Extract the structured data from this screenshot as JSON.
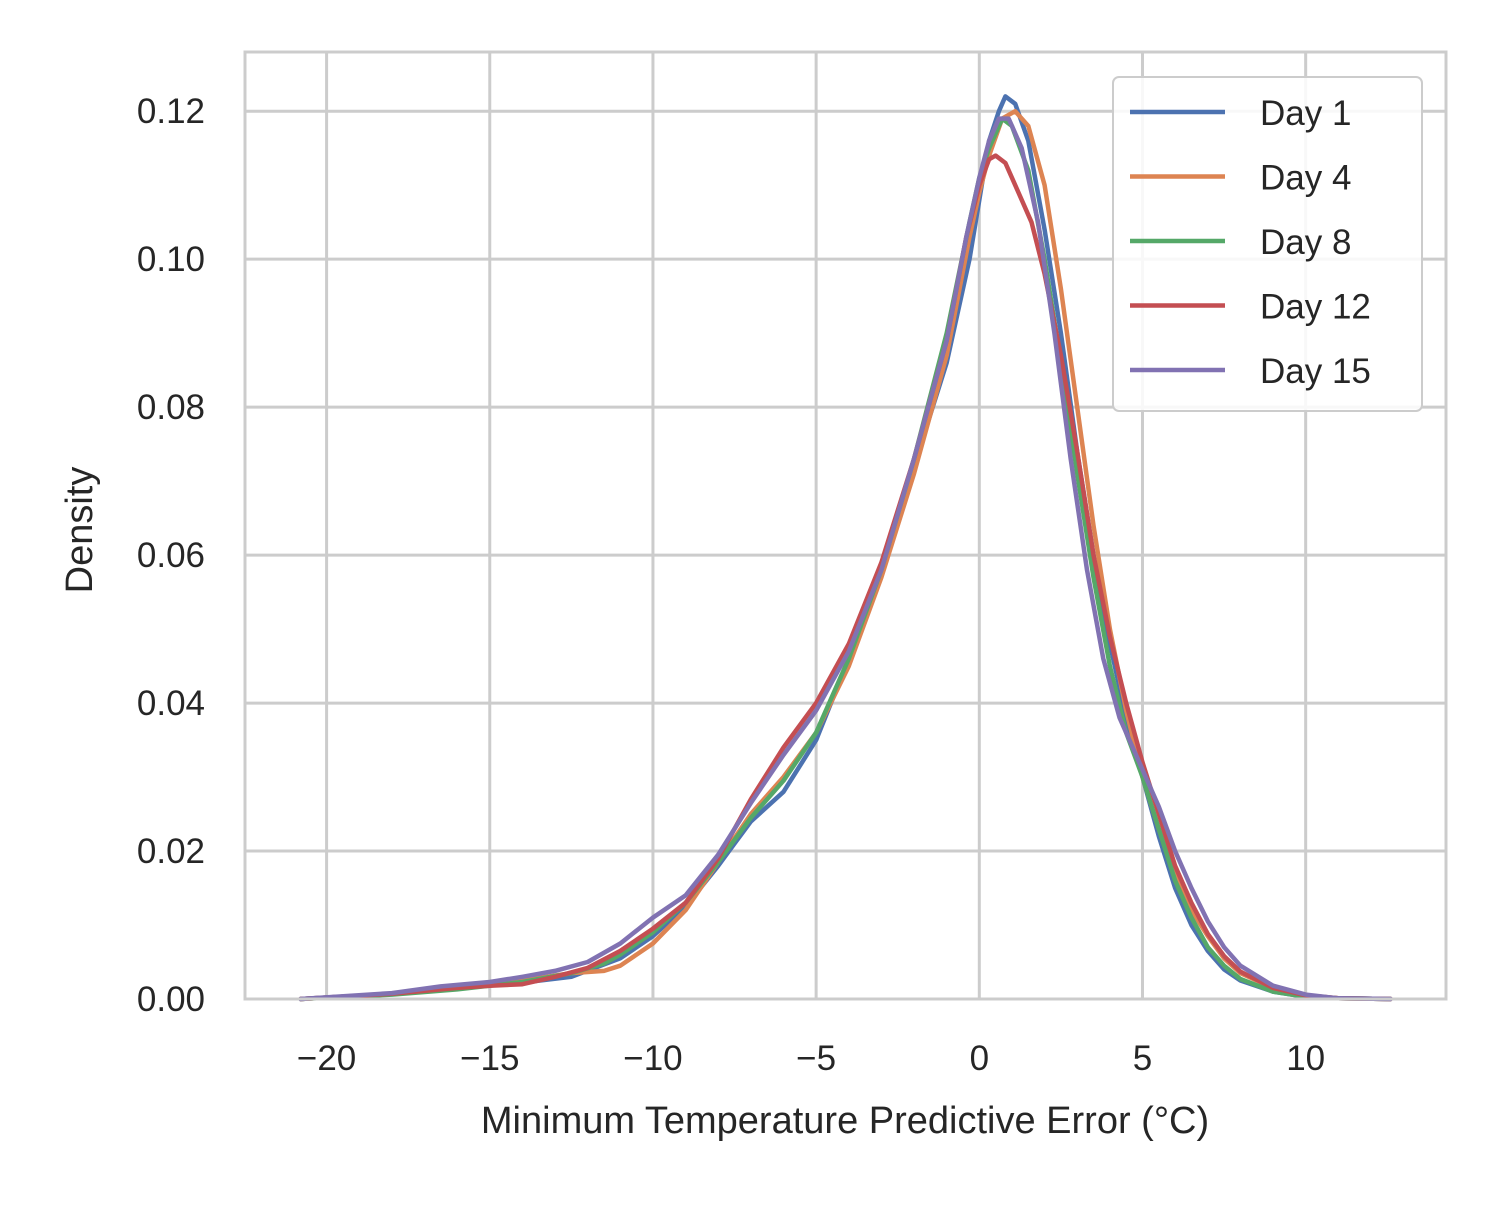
{
  "chart_data": {
    "type": "line",
    "xlabel": "Minimum Temperature Predictive Error (°C)",
    "ylabel": "Density",
    "xlim": [
      -22.5,
      14.3
    ],
    "ylim": [
      0,
      0.128
    ],
    "xticks": [
      -20,
      -15,
      -10,
      -5,
      0,
      5,
      10
    ],
    "xtick_labels": [
      "−20",
      "−15",
      "−10",
      "−5",
      "0",
      "5",
      "10"
    ],
    "yticks": [
      0.0,
      0.02,
      0.04,
      0.06,
      0.08,
      0.1,
      0.12
    ],
    "ytick_labels": [
      "0.00",
      "0.02",
      "0.04",
      "0.06",
      "0.08",
      "0.10",
      "0.12"
    ],
    "grid": true,
    "legend_position": "top-right",
    "series": [
      {
        "name": "Day 1",
        "color": "#4c72b0",
        "points": [
          [
            -20.8,
            0
          ],
          [
            -18,
            0.0007
          ],
          [
            -16,
            0.0015
          ],
          [
            -14,
            0.0022
          ],
          [
            -12.5,
            0.003
          ],
          [
            -11,
            0.0055
          ],
          [
            -10,
            0.0085
          ],
          [
            -9,
            0.0125
          ],
          [
            -8,
            0.018
          ],
          [
            -7.5,
            0.021
          ],
          [
            -7,
            0.024
          ],
          [
            -6,
            0.028
          ],
          [
            -5,
            0.035
          ],
          [
            -4,
            0.046
          ],
          [
            -3,
            0.058
          ],
          [
            -2,
            0.072
          ],
          [
            -1,
            0.086
          ],
          [
            -0.3,
            0.1
          ],
          [
            0,
            0.108
          ],
          [
            0.3,
            0.116
          ],
          [
            0.6,
            0.12
          ],
          [
            0.8,
            0.122
          ],
          [
            1.1,
            0.121
          ],
          [
            1.5,
            0.116
          ],
          [
            2,
            0.104
          ],
          [
            2.5,
            0.09
          ],
          [
            3,
            0.074
          ],
          [
            3.5,
            0.06
          ],
          [
            4,
            0.048
          ],
          [
            4.5,
            0.038
          ],
          [
            5,
            0.03
          ],
          [
            5.5,
            0.022
          ],
          [
            6,
            0.015
          ],
          [
            6.5,
            0.01
          ],
          [
            7,
            0.0065
          ],
          [
            7.5,
            0.004
          ],
          [
            8,
            0.0025
          ],
          [
            9,
            0.001
          ],
          [
            10,
            0.0003
          ],
          [
            11,
            0.0001
          ],
          [
            12.6,
            0
          ]
        ]
      },
      {
        "name": "Day 4",
        "color": "#dd8452",
        "points": [
          [
            -20.8,
            0
          ],
          [
            -18,
            0.0007
          ],
          [
            -16,
            0.0015
          ],
          [
            -14,
            0.0025
          ],
          [
            -12.5,
            0.0035
          ],
          [
            -11.5,
            0.0038
          ],
          [
            -11,
            0.0045
          ],
          [
            -10,
            0.0075
          ],
          [
            -9,
            0.012
          ],
          [
            -8,
            0.0185
          ],
          [
            -7,
            0.025
          ],
          [
            -6,
            0.03
          ],
          [
            -5,
            0.036
          ],
          [
            -4,
            0.045
          ],
          [
            -3,
            0.057
          ],
          [
            -2,
            0.071
          ],
          [
            -1,
            0.087
          ],
          [
            -0.3,
            0.103
          ],
          [
            0,
            0.109
          ],
          [
            0.3,
            0.114
          ],
          [
            0.7,
            0.119
          ],
          [
            1.1,
            0.12
          ],
          [
            1.5,
            0.118
          ],
          [
            2,
            0.11
          ],
          [
            2.5,
            0.096
          ],
          [
            3,
            0.08
          ],
          [
            3.5,
            0.064
          ],
          [
            4,
            0.05
          ],
          [
            4.5,
            0.039
          ],
          [
            5,
            0.03
          ],
          [
            5.5,
            0.023
          ],
          [
            6,
            0.017
          ],
          [
            6.5,
            0.012
          ],
          [
            7,
            0.0085
          ],
          [
            7.5,
            0.0055
          ],
          [
            8,
            0.0035
          ],
          [
            9,
            0.0015
          ],
          [
            10,
            0.0005
          ],
          [
            11,
            0.0001
          ],
          [
            12.6,
            0
          ]
        ]
      },
      {
        "name": "Day 8",
        "color": "#55a868",
        "points": [
          [
            -20.8,
            0
          ],
          [
            -18,
            0.0006
          ],
          [
            -16,
            0.0013
          ],
          [
            -14,
            0.0023
          ],
          [
            -12.5,
            0.0035
          ],
          [
            -11.5,
            0.0048
          ],
          [
            -11,
            0.006
          ],
          [
            -10,
            0.009
          ],
          [
            -9,
            0.013
          ],
          [
            -8,
            0.0185
          ],
          [
            -7,
            0.0245
          ],
          [
            -6,
            0.0295
          ],
          [
            -5,
            0.036
          ],
          [
            -4,
            0.046
          ],
          [
            -3,
            0.058
          ],
          [
            -2,
            0.073
          ],
          [
            -1,
            0.09
          ],
          [
            -0.3,
            0.105
          ],
          [
            0,
            0.111
          ],
          [
            0.3,
            0.115
          ],
          [
            0.7,
            0.119
          ],
          [
            1,
            0.118
          ],
          [
            1.5,
            0.112
          ],
          [
            2,
            0.1
          ],
          [
            2.5,
            0.086
          ],
          [
            3,
            0.071
          ],
          [
            3.5,
            0.057
          ],
          [
            4,
            0.045
          ],
          [
            4.5,
            0.036
          ],
          [
            5,
            0.03
          ],
          [
            5.5,
            0.023
          ],
          [
            6,
            0.016
          ],
          [
            6.5,
            0.011
          ],
          [
            7,
            0.007
          ],
          [
            7.5,
            0.0045
          ],
          [
            8,
            0.0027
          ],
          [
            9,
            0.001
          ],
          [
            10,
            0.0003
          ],
          [
            11,
            0.0001
          ],
          [
            12.6,
            0
          ]
        ]
      },
      {
        "name": "Day 12",
        "color": "#c44e52",
        "points": [
          [
            -20.8,
            0
          ],
          [
            -18,
            0.0007
          ],
          [
            -16,
            0.0015
          ],
          [
            -15,
            0.0018
          ],
          [
            -14,
            0.002
          ],
          [
            -13,
            0.003
          ],
          [
            -12,
            0.0042
          ],
          [
            -11,
            0.0065
          ],
          [
            -10,
            0.0095
          ],
          [
            -9,
            0.013
          ],
          [
            -8,
            0.019
          ],
          [
            -7,
            0.027
          ],
          [
            -6,
            0.034
          ],
          [
            -5,
            0.04
          ],
          [
            -4,
            0.048
          ],
          [
            -3,
            0.059
          ],
          [
            -2,
            0.073
          ],
          [
            -1,
            0.089
          ],
          [
            -0.4,
            0.103
          ],
          [
            0,
            0.11
          ],
          [
            0.3,
            0.1135
          ],
          [
            0.5,
            0.114
          ],
          [
            0.8,
            0.113
          ],
          [
            1.2,
            0.109
          ],
          [
            1.6,
            0.105
          ],
          [
            2,
            0.098
          ],
          [
            2.5,
            0.087
          ],
          [
            3,
            0.074
          ],
          [
            3.5,
            0.06
          ],
          [
            4,
            0.049
          ],
          [
            4.5,
            0.04
          ],
          [
            5,
            0.032
          ],
          [
            5.5,
            0.025
          ],
          [
            6,
            0.018
          ],
          [
            6.5,
            0.013
          ],
          [
            7,
            0.0088
          ],
          [
            7.5,
            0.0058
          ],
          [
            8,
            0.0037
          ],
          [
            9,
            0.0015
          ],
          [
            10,
            0.0005
          ],
          [
            11,
            0.0001
          ],
          [
            12.6,
            0
          ]
        ]
      },
      {
        "name": "Day 15",
        "color": "#8172b2",
        "points": [
          [
            -20.8,
            0
          ],
          [
            -18,
            0.0008
          ],
          [
            -16.5,
            0.0017
          ],
          [
            -15,
            0.0023
          ],
          [
            -14,
            0.003
          ],
          [
            -13,
            0.0038
          ],
          [
            -12,
            0.005
          ],
          [
            -11,
            0.0075
          ],
          [
            -10,
            0.011
          ],
          [
            -9,
            0.014
          ],
          [
            -8,
            0.0195
          ],
          [
            -7,
            0.0265
          ],
          [
            -6,
            0.033
          ],
          [
            -5,
            0.039
          ],
          [
            -4,
            0.047
          ],
          [
            -3,
            0.058
          ],
          [
            -2,
            0.073
          ],
          [
            -1,
            0.089
          ],
          [
            -0.4,
            0.103
          ],
          [
            0,
            0.111
          ],
          [
            0.3,
            0.116
          ],
          [
            0.6,
            0.119
          ],
          [
            0.9,
            0.119
          ],
          [
            1.3,
            0.115
          ],
          [
            1.8,
            0.105
          ],
          [
            2.3,
            0.09
          ],
          [
            2.8,
            0.073
          ],
          [
            3.3,
            0.058
          ],
          [
            3.8,
            0.046
          ],
          [
            4.3,
            0.038
          ],
          [
            4.8,
            0.033
          ],
          [
            5,
            0.031
          ],
          [
            5.5,
            0.026
          ],
          [
            6,
            0.02
          ],
          [
            6.5,
            0.015
          ],
          [
            7,
            0.0105
          ],
          [
            7.5,
            0.007
          ],
          [
            8,
            0.0045
          ],
          [
            9,
            0.0018
          ],
          [
            10,
            0.0006
          ],
          [
            11,
            0.0001
          ],
          [
            12.6,
            0
          ]
        ]
      }
    ]
  }
}
